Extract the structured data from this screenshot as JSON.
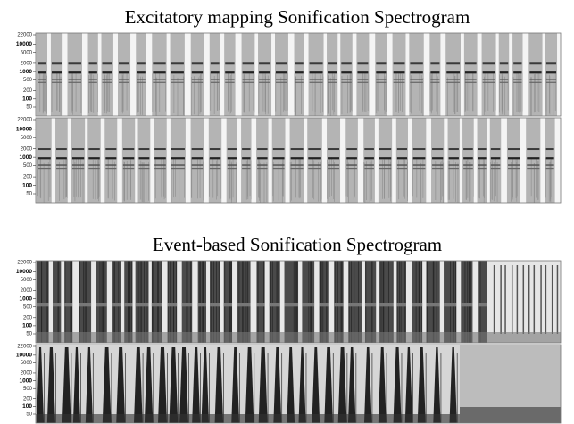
{
  "panels": [
    {
      "title": "Excitatory mapping Sonification Spectrogram",
      "frequency_ticks": [
        22000,
        10000,
        5000,
        2000,
        1000,
        500,
        200,
        100,
        50
      ]
    },
    {
      "title": "Event-based Sonification Spectrogram",
      "frequency_ticks": [
        22000,
        10000,
        5000,
        2000,
        1000,
        500,
        200,
        100,
        50
      ]
    }
  ]
}
